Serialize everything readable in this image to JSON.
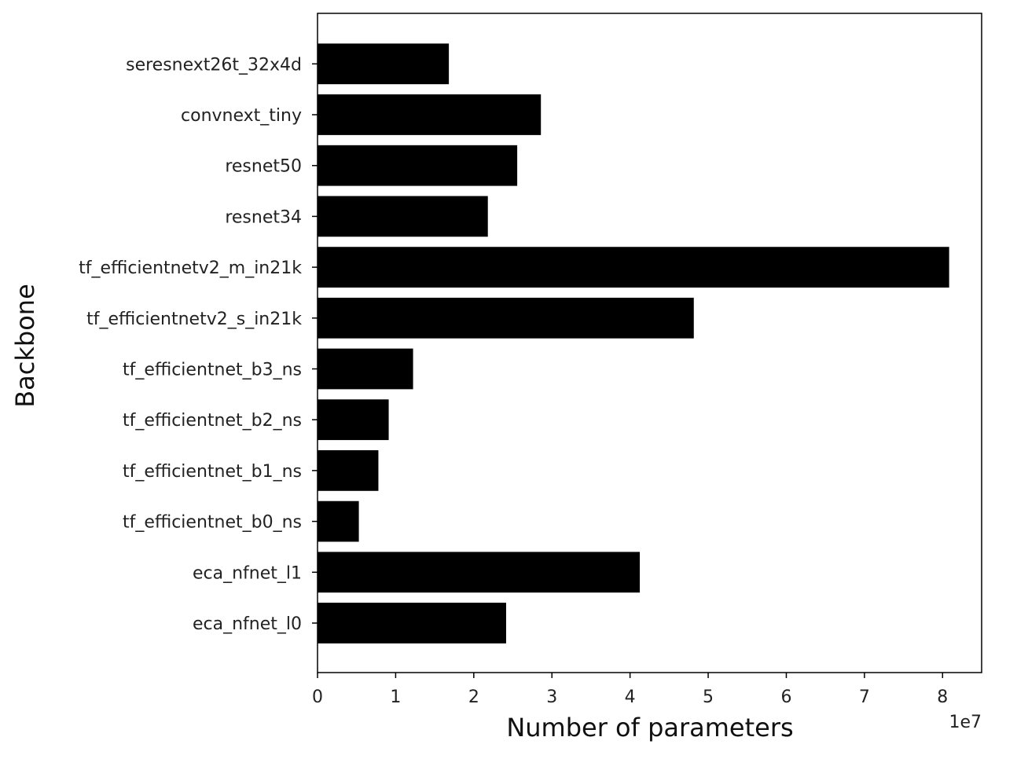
{
  "chart_data": {
    "type": "bar",
    "orientation": "horizontal",
    "categories": [
      "eca_nfnet_l0",
      "eca_nfnet_l1",
      "tf_efficientnet_b0_ns",
      "tf_efficientnet_b1_ns",
      "tf_efficientnet_b2_ns",
      "tf_efficientnet_b3_ns",
      "tf_efficientnetv2_s_in21k",
      "tf_efficientnetv2_m_in21k",
      "resnet34",
      "resnet50",
      "convnext_tiny",
      "seresnext26t_32x4d"
    ],
    "values": [
      24140000,
      41250000,
      5290000,
      7790000,
      9110000,
      12230000,
      48160000,
      80840000,
      21800000,
      25560000,
      28590000,
      16810000
    ],
    "xlabel": "Number of parameters",
    "ylabel": "Backbone",
    "xlim": [
      0,
      85000000
    ],
    "xticks": [
      0,
      1,
      2,
      3,
      4,
      5,
      6,
      7,
      8
    ],
    "xtick_labels": [
      "0",
      "1",
      "2",
      "3",
      "4",
      "5",
      "6",
      "7",
      "8"
    ],
    "x_offset_label": "1e7",
    "bar_color": "#000000",
    "grid": false,
    "legend": "none"
  }
}
